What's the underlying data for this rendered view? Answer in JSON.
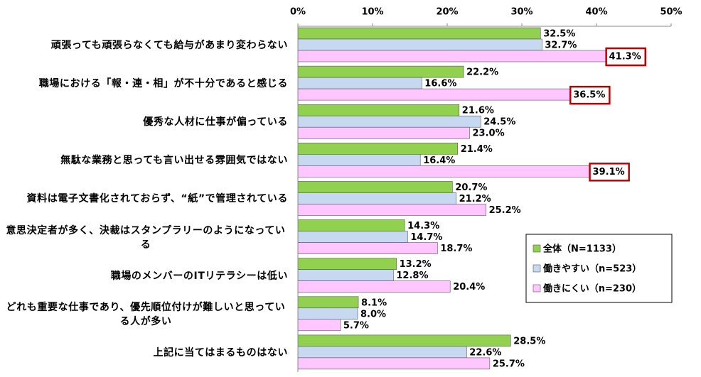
{
  "chart_data": {
    "type": "bar",
    "orientation": "horizontal",
    "categories": [
      "頑張っても頑張らなくても給与があまり変わらない",
      "職場における「報・連・相」が不十分であると感じる",
      "優秀な人材に仕事が偏っている",
      "無駄な業務と思っても言い出せる雰囲気ではない",
      "資料は電子文書化されておらず、“紙”で管理されている",
      "意思決定者が多く、決裁はスタンプラリーのようになっている",
      "職場のメンバーのITリテラシーは低い",
      "どれも重要な仕事であり、優先順位付けが難しいと思っている人が多い",
      "上記に当てはまるものはない"
    ],
    "series": [
      {
        "name": "全体（N=1133）",
        "color": "#92d050",
        "values": [
          32.5,
          22.2,
          21.6,
          21.4,
          20.7,
          14.3,
          13.2,
          8.1,
          28.5
        ],
        "value_labels": [
          "32.5%",
          "22.2%",
          "21.6%",
          "21.4%",
          "20.7%",
          "14.3%",
          "13.2%",
          "8.1%",
          "28.5%"
        ]
      },
      {
        "name": "働きやすい（n=523）",
        "color": "#c6d9f1",
        "values": [
          32.7,
          16.6,
          24.5,
          16.4,
          21.2,
          14.7,
          12.8,
          8.0,
          22.6
        ],
        "value_labels": [
          "32.7%",
          "16.6%",
          "24.5%",
          "16.4%",
          "21.2%",
          "14.7%",
          "12.8%",
          "8.0%",
          "22.6%"
        ]
      },
      {
        "name": "働きにくい（n=230）",
        "color": "#ffc6ff",
        "values": [
          41.3,
          36.5,
          23.0,
          39.1,
          25.2,
          18.7,
          20.4,
          5.7,
          25.7
        ],
        "value_labels": [
          "41.3%",
          "36.5%",
          "23.0%",
          "39.1%",
          "25.2%",
          "18.7%",
          "20.4%",
          "5.7%",
          "25.7%"
        ],
        "boxed_labels": [
          true,
          true,
          false,
          true,
          false,
          false,
          false,
          false,
          false
        ]
      }
    ],
    "xlim": [
      0,
      50
    ],
    "xticks": [
      {
        "value": 0,
        "label": "0%"
      },
      {
        "value": 10,
        "label": "10%"
      },
      {
        "value": 20,
        "label": "20%"
      },
      {
        "value": 30,
        "label": "30%"
      },
      {
        "value": 40,
        "label": "40%"
      },
      {
        "value": 50,
        "label": "50%"
      }
    ],
    "legend": "lower right"
  }
}
